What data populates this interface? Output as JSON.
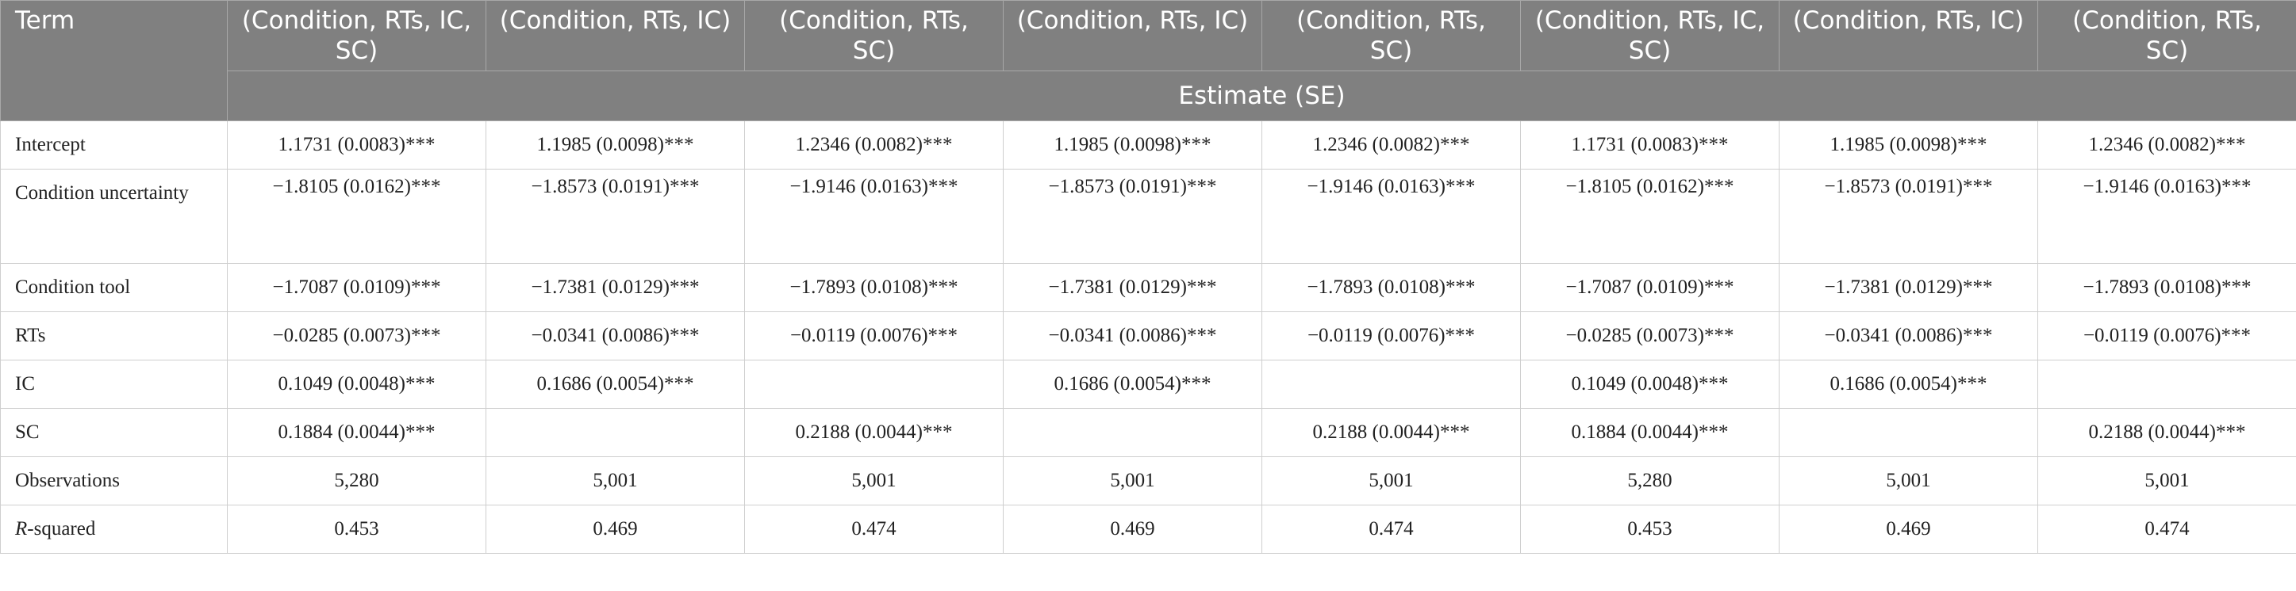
{
  "table": {
    "header": {
      "term": "Term",
      "columns": [
        "(Condition, RTs, IC, SC)",
        "(Condition, RTs, IC)",
        "(Condition, RTs, SC)",
        "(Condition, RTs, IC)",
        "(Condition, RTs, SC)",
        "(Condition, RTs, IC, SC)",
        "(Condition, RTs, IC)",
        "(Condition, RTs, SC)"
      ],
      "subheader": "Estimate (SE)"
    },
    "rows": [
      {
        "term": "Intercept",
        "cells": [
          "1.1731 (0.0083)***",
          "1.1985 (0.0098)***",
          "1.2346 (0.0082)***",
          "1.1985 (0.0098)***",
          "1.2346 (0.0082)***",
          "1.1731 (0.0083)***",
          "1.1985 (0.0098)***",
          "1.2346 (0.0082)***"
        ]
      },
      {
        "term": "Condition uncertainty",
        "cells": [
          "−1.8105 (0.0162)***",
          "−1.8573 (0.0191)***",
          "−1.9146 (0.0163)***",
          "−1.8573 (0.0191)***",
          "−1.9146 (0.0163)***",
          "−1.8105 (0.0162)***",
          "−1.8573 (0.0191)***",
          "−1.9146 (0.0163)***"
        ]
      },
      {
        "term": "Condition tool",
        "cells": [
          "−1.7087 (0.0109)***",
          "−1.7381 (0.0129)***",
          "−1.7893 (0.0108)***",
          "−1.7381 (0.0129)***",
          "−1.7893 (0.0108)***",
          "−1.7087 (0.0109)***",
          "−1.7381 (0.0129)***",
          "−1.7893 (0.0108)***"
        ]
      },
      {
        "term": "RTs",
        "cells": [
          "−0.0285 (0.0073)***",
          "−0.0341 (0.0086)***",
          "−0.0119 (0.0076)***",
          "−0.0341 (0.0086)***",
          "−0.0119 (0.0076)***",
          "−0.0285 (0.0073)***",
          "−0.0341 (0.0086)***",
          "−0.0119 (0.0076)***"
        ]
      },
      {
        "term": "IC",
        "cells": [
          "0.1049 (0.0048)***",
          "0.1686 (0.0054)***",
          null,
          "0.1686 (0.0054)***",
          null,
          "0.1049 (0.0048)***",
          "0.1686 (0.0054)***",
          null
        ]
      },
      {
        "term": "SC",
        "cells": [
          "0.1884 (0.0044)***",
          null,
          "0.2188 (0.0044)***",
          null,
          "0.2188 (0.0044)***",
          "0.1884 (0.0044)***",
          null,
          "0.2188 (0.0044)***"
        ]
      },
      {
        "term": "Observations",
        "cells": [
          "5,280",
          "5,001",
          "5,001",
          "5,001",
          "5,001",
          "5,280",
          "5,001",
          "5,001"
        ]
      },
      {
        "term": "R-squared",
        "cells": [
          "0.453",
          "0.469",
          "0.474",
          "0.469",
          "0.474",
          "0.453",
          "0.469",
          "0.474"
        ]
      }
    ]
  }
}
